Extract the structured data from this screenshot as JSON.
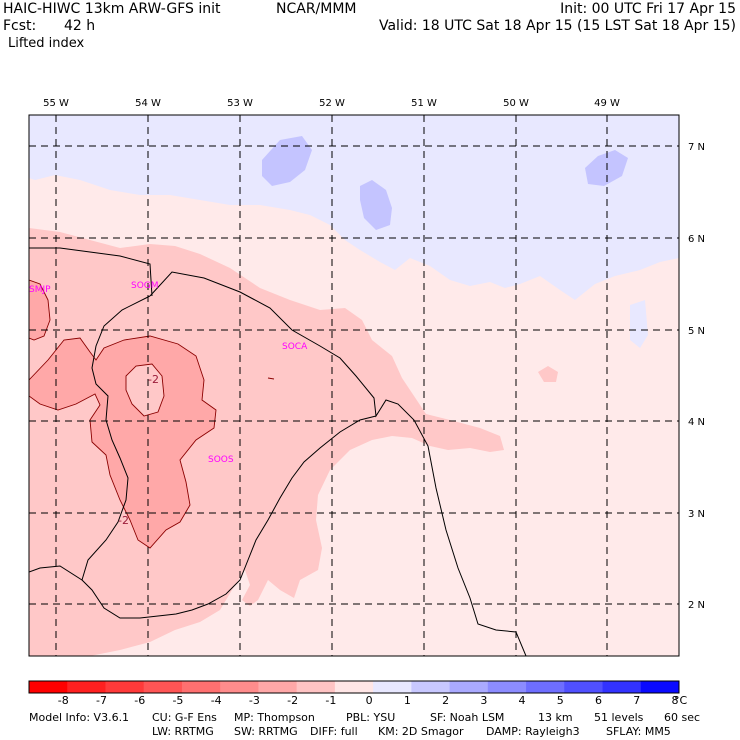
{
  "header": {
    "model": "HAIC-HIWC 13km ARW-GFS init",
    "org": "NCAR/MMM",
    "init": "Init: 00 UTC Fri 17 Apr 15",
    "fcst_label": "Fcst:",
    "fcst_value": "42 h",
    "valid": "Valid: 18 UTC Sat 18 Apr 15 (15 LST Sat 18 Apr 15)",
    "field": "Lifted index"
  },
  "longitudes": [
    "55 W",
    "54 W",
    "53 W",
    "52 W",
    "51 W",
    "50 W",
    "49 W"
  ],
  "latitudes": [
    "7 N",
    "6 N",
    "5 N",
    "4 N",
    "3 N",
    "2 N"
  ],
  "stations": [
    "SMJP",
    "SOGM",
    "SOCA",
    "SOOS"
  ],
  "contour_labels": [
    "-2",
    "-2"
  ],
  "colorbar": {
    "ticks": [
      "-8",
      "-7",
      "-6",
      "-5",
      "-4",
      "-3",
      "-2",
      "-1",
      "0",
      "1",
      "2",
      "3",
      "4",
      "5",
      "6",
      "7",
      "8"
    ],
    "unit": "°C",
    "colors": [
      "#ff0000",
      "#ff2020",
      "#ff3a3a",
      "#ff5555",
      "#ff7070",
      "#ff8c8c",
      "#ffa8a8",
      "#ffc4c4",
      "#ffe6e6",
      "#e8e8ff",
      "#c8c8ff",
      "#aaaaff",
      "#8c8cff",
      "#6e6eff",
      "#5050ff",
      "#3232ff",
      "#0a0aff"
    ]
  },
  "footer": {
    "line1": [
      "Model Info: V3.6.1",
      "CU: G-F Ens",
      "MP: Thompson",
      "PBL: YSU",
      "SF: Noah LSM",
      "13 km",
      "51 levels",
      "60 sec"
    ],
    "line2": [
      "LW: RRTMG",
      "SW: RRTMG",
      "DIFF: full",
      "KM: 2D Smagor",
      "DAMP: Rayleigh3",
      "SFLAY: MM5"
    ]
  },
  "colors": {
    "bg_light_pink": "#ffeaea",
    "pink": "#ffc8c8",
    "dark_pink": "#ffa8a8",
    "light_blue": "#e8e8ff",
    "blue": "#c4c4ff",
    "station_text": "#ff00ff",
    "contour_label": "#9b1c3a"
  }
}
